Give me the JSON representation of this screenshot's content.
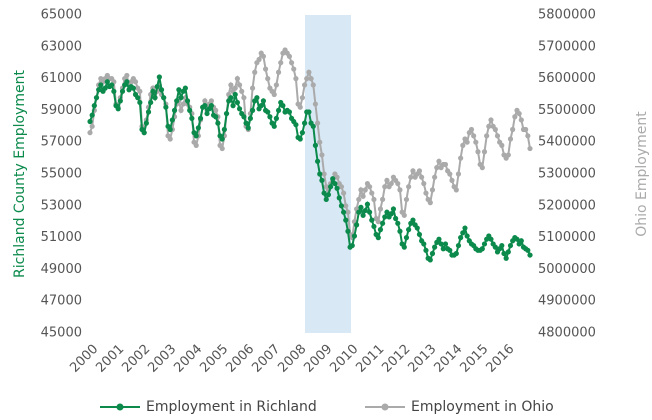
{
  "chart_data": {
    "type": "line",
    "y_label": "Richland County Employment",
    "y2_label": "Ohio Employment",
    "categories": [
      "2000",
      null,
      null,
      null,
      null,
      null,
      null,
      null,
      null,
      null,
      null,
      null,
      "2001",
      null,
      null,
      null,
      null,
      null,
      null,
      null,
      null,
      null,
      null,
      null,
      "2002",
      null,
      null,
      null,
      null,
      null,
      null,
      null,
      null,
      null,
      null,
      null,
      "2003",
      null,
      null,
      null,
      null,
      null,
      null,
      null,
      null,
      null,
      null,
      null,
      "2004",
      null,
      null,
      null,
      null,
      null,
      null,
      null,
      null,
      null,
      null,
      null,
      "2005",
      null,
      null,
      null,
      null,
      null,
      null,
      null,
      null,
      null,
      null,
      null,
      "2006",
      null,
      null,
      null,
      null,
      null,
      null,
      null,
      null,
      null,
      null,
      null,
      "2007",
      null,
      null,
      null,
      null,
      null,
      null,
      null,
      null,
      null,
      null,
      null,
      "2008",
      null,
      null,
      null,
      null,
      null,
      null,
      null,
      null,
      null,
      null,
      null,
      "2009",
      null,
      null,
      null,
      null,
      null,
      null,
      null,
      null,
      null,
      null,
      null,
      "2010",
      null,
      null,
      null,
      null,
      null,
      null,
      null,
      null,
      null,
      null,
      null,
      "2011",
      null,
      null,
      null,
      null,
      null,
      null,
      null,
      null,
      null,
      null,
      null,
      "2012",
      null,
      null,
      null,
      null,
      null,
      null,
      null,
      null,
      null,
      null,
      null,
      "2013",
      null,
      null,
      null,
      null,
      null,
      null,
      null,
      null,
      null,
      null,
      null,
      "2014",
      null,
      null,
      null,
      null,
      null,
      null,
      null,
      null,
      null,
      null,
      null,
      "2015",
      null,
      null,
      null,
      null,
      null,
      null,
      null,
      null,
      null,
      null,
      null,
      "2016",
      null,
      null,
      null,
      null,
      null,
      null,
      null,
      null,
      null,
      null,
      null
    ],
    "ylim": [
      45000,
      65000
    ],
    "yticks": [
      45000,
      47000,
      49000,
      51000,
      53000,
      55000,
      57000,
      59000,
      61000,
      63000,
      65000
    ],
    "y2lim": [
      4800000,
      5800000
    ],
    "y2ticks": [
      4800000,
      4900000,
      5000000,
      5100000,
      5200000,
      5300000,
      5400000,
      5500000,
      5600000,
      5700000,
      5800000
    ],
    "legend": "bottom",
    "series": [
      {
        "name": "Employment in Richland",
        "color": "#0b8a4c",
        "values": [
          58300,
          58700,
          59300,
          59800,
          60300,
          60600,
          60200,
          60400,
          60800,
          60500,
          60600,
          60200,
          59300,
          59100,
          59600,
          60200,
          60600,
          60800,
          60300,
          60500,
          60400,
          60000,
          59800,
          59500,
          57800,
          57600,
          58200,
          58900,
          59500,
          60200,
          59800,
          60500,
          61100,
          60300,
          59800,
          59200,
          58000,
          57800,
          58400,
          59000,
          59600,
          60300,
          59800,
          60200,
          60400,
          59600,
          59000,
          58500,
          57600,
          57400,
          57900,
          58500,
          59200,
          59300,
          58800,
          59100,
          59300,
          58700,
          58600,
          58200,
          57400,
          57200,
          57800,
          58800,
          59600,
          59800,
          59300,
          60000,
          59500,
          59100,
          58800,
          58600,
          58200,
          57900,
          58500,
          59000,
          59600,
          59800,
          59100,
          59300,
          59600,
          59000,
          58900,
          58600,
          58200,
          58000,
          58500,
          59000,
          59500,
          59300,
          58900,
          59000,
          58900,
          58500,
          58300,
          58100,
          57300,
          57200,
          57600,
          58200,
          58900,
          58900,
          58200,
          58000,
          56800,
          55800,
          55000,
          54600,
          53800,
          53400,
          53700,
          54200,
          54700,
          54400,
          54100,
          53500,
          53000,
          52600,
          52100,
          51400,
          50400,
          50500,
          51100,
          51800,
          52600,
          52900,
          52400,
          52700,
          53100,
          52600,
          52100,
          51700,
          51200,
          51000,
          51500,
          51900,
          52300,
          52600,
          52300,
          52500,
          52800,
          52200,
          51900,
          51400,
          50600,
          50400,
          51000,
          51500,
          51900,
          52100,
          51800,
          51600,
          51200,
          50800,
          50600,
          50200,
          49700,
          49600,
          50000,
          50400,
          50700,
          50900,
          50600,
          50300,
          50600,
          50300,
          50200,
          49900,
          49900,
          50000,
          50500,
          51000,
          51300,
          51600,
          51100,
          50800,
          50600,
          50500,
          50300,
          50200,
          50200,
          50300,
          50600,
          50900,
          51100,
          50900,
          50600,
          50400,
          50100,
          50300,
          50500,
          50000,
          49700,
          50100,
          50500,
          50800,
          51000,
          50900,
          50600,
          50800,
          50400,
          50300,
          50200,
          49900
        ]
      },
      {
        "name": "Employment in Ohio",
        "color": "#aaaaaa",
        "axis": "y2",
        "values": [
          5430000,
          5450000,
          5500000,
          5540000,
          5580000,
          5600000,
          5590000,
          5600000,
          5610000,
          5600000,
          5600000,
          5590000,
          5520000,
          5510000,
          5540000,
          5570000,
          5600000,
          5610000,
          5580000,
          5590000,
          5600000,
          5590000,
          5570000,
          5560000,
          5450000,
          5430000,
          5470000,
          5510000,
          5550000,
          5570000,
          5540000,
          5560000,
          5580000,
          5550000,
          5540000,
          5520000,
          5420000,
          5410000,
          5440000,
          5480000,
          5520000,
          5530000,
          5500000,
          5520000,
          5540000,
          5520000,
          5510000,
          5490000,
          5400000,
          5390000,
          5420000,
          5470000,
          5510000,
          5530000,
          5500000,
          5520000,
          5530000,
          5510000,
          5500000,
          5480000,
          5390000,
          5380000,
          5420000,
          5490000,
          5550000,
          5580000,
          5560000,
          5570000,
          5600000,
          5580000,
          5560000,
          5540000,
          5450000,
          5440000,
          5490000,
          5570000,
          5620000,
          5650000,
          5660000,
          5680000,
          5670000,
          5630000,
          5600000,
          5570000,
          5560000,
          5550000,
          5580000,
          5620000,
          5650000,
          5680000,
          5690000,
          5680000,
          5670000,
          5650000,
          5630000,
          5600000,
          5520000,
          5510000,
          5540000,
          5580000,
          5600000,
          5620000,
          5600000,
          5580000,
          5520000,
          5460000,
          5400000,
          5360000,
          5300000,
          5260000,
          5250000,
          5270000,
          5280000,
          5300000,
          5290000,
          5270000,
          5260000,
          5240000,
          5200000,
          5180000,
          5110000,
          5100000,
          5150000,
          5190000,
          5220000,
          5250000,
          5230000,
          5250000,
          5270000,
          5260000,
          5240000,
          5220000,
          5160000,
          5150000,
          5190000,
          5220000,
          5260000,
          5280000,
          5260000,
          5270000,
          5290000,
          5280000,
          5270000,
          5250000,
          5180000,
          5170000,
          5220000,
          5260000,
          5290000,
          5310000,
          5290000,
          5300000,
          5310000,
          5290000,
          5270000,
          5240000,
          5220000,
          5210000,
          5250000,
          5290000,
          5320000,
          5340000,
          5320000,
          5330000,
          5330000,
          5310000,
          5300000,
          5280000,
          5260000,
          5250000,
          5300000,
          5350000,
          5390000,
          5410000,
          5400000,
          5430000,
          5440000,
          5420000,
          5400000,
          5370000,
          5330000,
          5320000,
          5370000,
          5420000,
          5450000,
          5470000,
          5450000,
          5440000,
          5420000,
          5400000,
          5390000,
          5360000,
          5350000,
          5360000,
          5410000,
          5440000,
          5480000,
          5500000,
          5490000,
          5470000,
          5440000,
          5440000,
          5420000,
          5380000
        ]
      }
    ]
  }
}
